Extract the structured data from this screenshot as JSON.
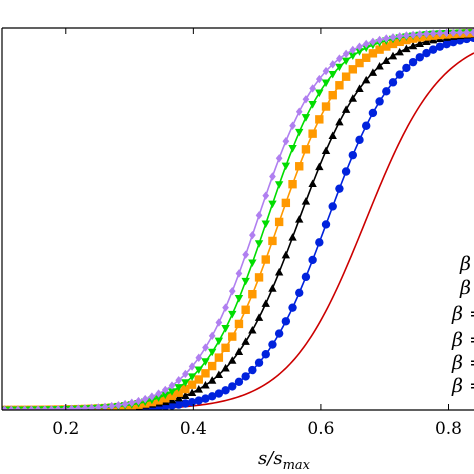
{
  "chart_data": {
    "type": "line",
    "xlabel": "s/s_max",
    "xlim": [
      0.1,
      0.84
    ],
    "ylim": [
      0,
      1
    ],
    "x_ticks": [
      "0.2",
      "0.4",
      "0.6",
      "0.8"
    ],
    "x_tick_values": [
      0.2,
      0.4,
      0.6,
      0.8
    ],
    "grid": false,
    "legend_placement": "right",
    "legend_fragments": [
      "β",
      "β",
      "β =",
      "β =",
      "β =",
      "β ="
    ],
    "series": [
      {
        "color": "#cc0000",
        "marker": "none",
        "midpoint": 0.67,
        "width": 0.06
      },
      {
        "color": "#0022dd",
        "marker": "circle",
        "midpoint": 0.61,
        "width": 0.055
      },
      {
        "color": "#000000",
        "marker": "triangle-up",
        "midpoint": 0.565,
        "width": 0.055
      },
      {
        "color": "#ff9900",
        "marker": "square",
        "midpoint": 0.535,
        "width": 0.052
      },
      {
        "color": "#00dd00",
        "marker": "triangle-down",
        "midpoint": 0.515,
        "width": 0.05
      },
      {
        "color": "#b07ff0",
        "marker": "diamond",
        "midpoint": 0.5,
        "width": 0.05
      }
    ]
  }
}
